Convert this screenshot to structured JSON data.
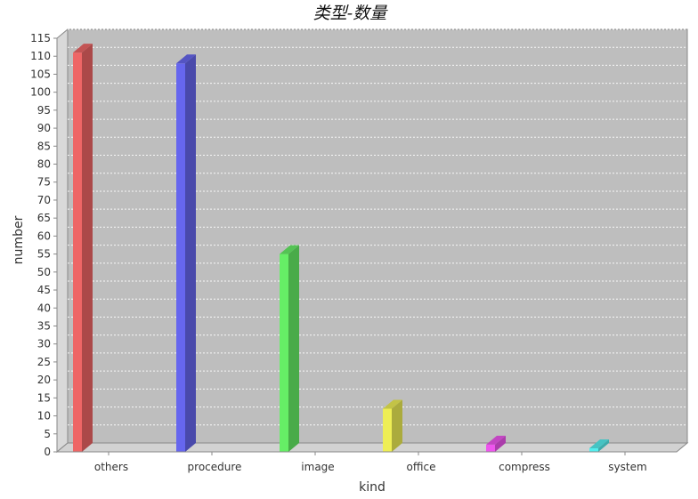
{
  "chart_data": {
    "type": "bar",
    "title": "类型-数量",
    "xlabel": "kind",
    "ylabel": "number",
    "categories": [
      "others",
      "procedure",
      "image",
      "office",
      "compress",
      "system"
    ],
    "values": [
      111,
      108,
      55,
      12,
      2,
      1
    ],
    "ylim": [
      0,
      115
    ],
    "yticks": [
      0,
      5,
      10,
      15,
      20,
      25,
      30,
      35,
      40,
      45,
      50,
      55,
      60,
      65,
      70,
      75,
      80,
      85,
      90,
      95,
      100,
      105,
      110,
      115
    ],
    "colors": [
      "#ee6666",
      "#6666ee",
      "#66ee66",
      "#eeee55",
      "#ee55ee",
      "#55eeee"
    ],
    "grid": true,
    "legend": "none",
    "style": "3d",
    "plot_background": "#bebebe"
  }
}
